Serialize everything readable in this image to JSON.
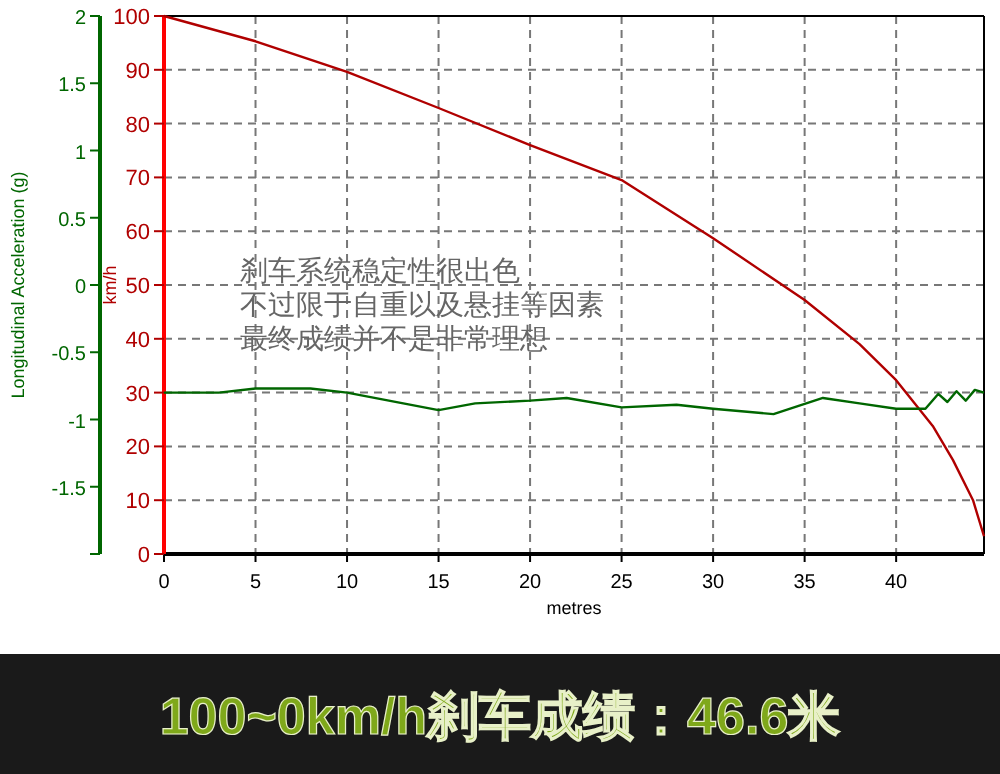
{
  "chart_data": {
    "type": "line",
    "title": "100~0km/h刹车成绩：46.6米",
    "xlabel": "metres",
    "ylabel": "Longitudinal Acceleration (g)",
    "y2label": "km/h",
    "annotations": [
      "刹车系统稳定性很出色",
      "不过限于自重以及悬挂等因素",
      "最终成绩并不是非常理想"
    ],
    "xlim": [
      0,
      44.8
    ],
    "xticks": [
      0,
      5,
      10,
      15,
      20,
      25,
      30,
      35,
      40
    ],
    "ylim": [
      -2,
      2
    ],
    "yticks": [
      {
        "value": -2,
        "label": null
      },
      -1.5,
      -1,
      -0.5,
      0,
      0.5,
      1,
      1.5,
      2
    ],
    "y2lim": [
      0,
      100
    ],
    "y2ticks": [
      0,
      10,
      20,
      30,
      40,
      50,
      60,
      70,
      80,
      90,
      100
    ],
    "grid": true,
    "line_style": "solid",
    "series": [
      {
        "color": "#b00000",
        "axis": "y2",
        "x": [
          0,
          5,
          10,
          15,
          20,
          25,
          30,
          35,
          38,
          40,
          42,
          43.1,
          44.2,
          44.8
        ],
        "values": [
          100,
          95.3,
          89.6,
          82.9,
          76,
          69.5,
          58.7,
          47.2,
          39,
          32.3,
          23.8,
          17.5,
          10,
          3.3
        ]
      },
      {
        "color": "#006600",
        "axis": "y",
        "x": [
          0,
          3,
          5,
          8,
          10,
          15,
          17,
          20,
          22,
          25,
          28,
          30,
          33.3,
          36,
          38,
          40,
          41.6,
          42.3,
          42.8,
          43.3,
          43.8,
          44.3,
          44.8
        ],
        "values": [
          -0.8,
          -0.8,
          -0.77,
          -0.77,
          -0.8,
          -0.93,
          -0.88,
          -0.86,
          -0.84,
          -0.91,
          -0.89,
          -0.92,
          -0.96,
          -0.84,
          -0.88,
          -0.92,
          -0.92,
          -0.81,
          -0.87,
          -0.79,
          -0.86,
          -0.78,
          -0.8
        ]
      }
    ]
  }
}
